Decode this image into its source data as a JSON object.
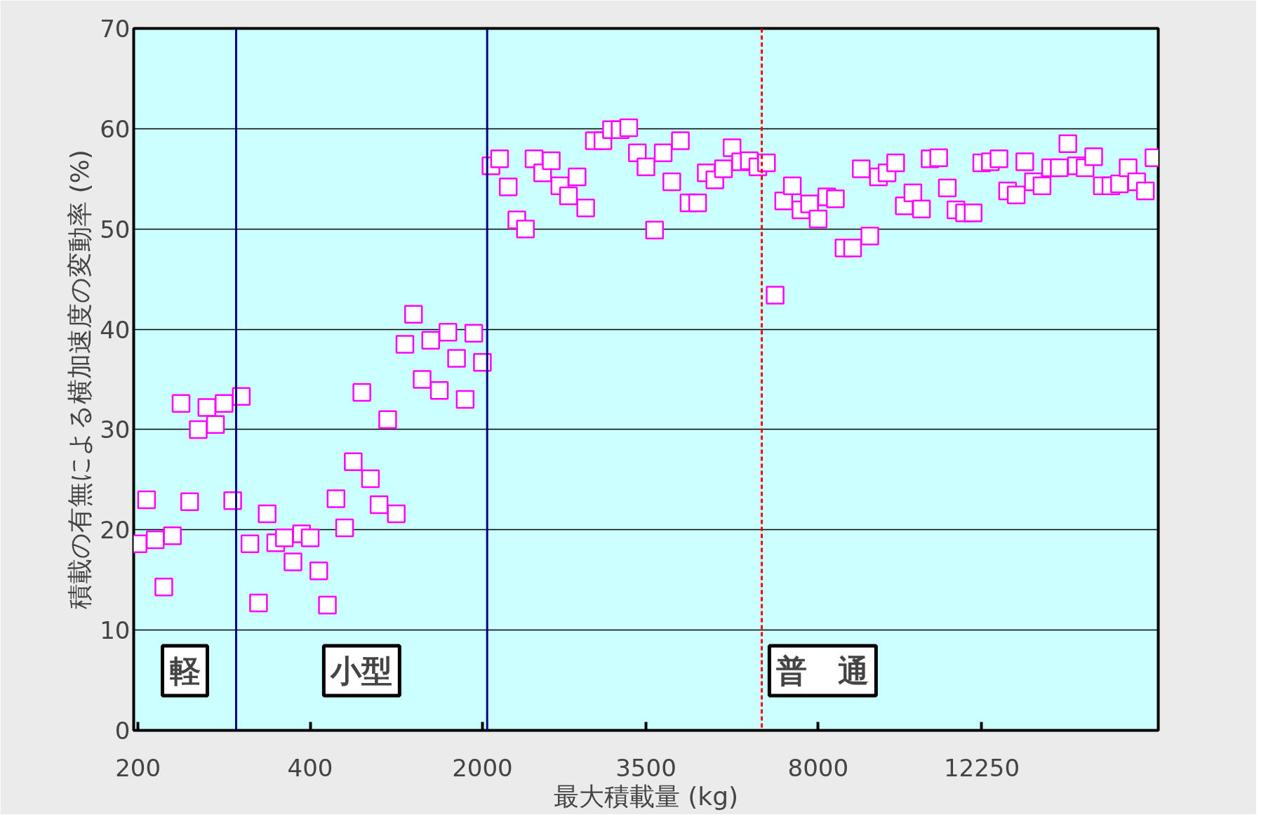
{
  "chart_data": {
    "type": "scatter",
    "xlabel": "最大積載量 (kg)",
    "ylabel": "積載の有無による横加速度の変動率 (%)",
    "annotations": [
      "軽",
      "小型",
      "普　通"
    ],
    "categories": [
      "200",
      null,
      null,
      null,
      null,
      null,
      null,
      null,
      null,
      null,
      null,
      null,
      null,
      null,
      null,
      null,
      null,
      null,
      null,
      null,
      "400",
      null,
      null,
      null,
      null,
      null,
      null,
      null,
      null,
      null,
      null,
      null,
      null,
      null,
      null,
      null,
      null,
      null,
      null,
      null,
      "2000",
      null,
      null,
      null,
      null,
      null,
      null,
      null,
      null,
      null,
      null,
      null,
      null,
      null,
      null,
      null,
      null,
      null,
      null,
      "3500",
      null,
      null,
      null,
      null,
      null,
      null,
      null,
      null,
      null,
      null,
      null,
      null,
      null,
      null,
      null,
      null,
      null,
      null,
      null,
      "8000",
      null,
      null,
      null,
      null,
      null,
      null,
      null,
      null,
      null,
      null,
      null,
      null,
      null,
      null,
      null,
      null,
      null,
      null,
      "12250",
      null,
      null,
      null,
      null,
      null,
      null,
      null,
      null,
      null,
      null,
      null,
      null,
      null,
      null,
      null,
      null,
      null,
      null,
      null,
      null
    ],
    "series": [
      {
        "color": "#ff00ff",
        "values": [
          18.6,
          23.0,
          19.0,
          14.3,
          19.4,
          32.6,
          22.8,
          30.0,
          32.2,
          30.5,
          32.6,
          22.9,
          33.3,
          18.6,
          12.7,
          21.6,
          18.7,
          19.2,
          16.8,
          19.6,
          19.2,
          15.9,
          12.5,
          23.1,
          20.2,
          26.8,
          33.7,
          25.1,
          22.5,
          31.0,
          21.6,
          38.5,
          41.5,
          35.0,
          38.9,
          33.9,
          39.7,
          37.1,
          33.0,
          39.6,
          36.7,
          56.3,
          57.0,
          54.2,
          50.9,
          50.0,
          57.0,
          55.6,
          56.8,
          54.3,
          53.3,
          55.2,
          52.1,
          58.8,
          58.8,
          59.9,
          59.9,
          60.1,
          57.6,
          56.2,
          49.9,
          57.6,
          54.7,
          58.8,
          52.6,
          52.6,
          55.6,
          54.9,
          56.0,
          58.1,
          56.7,
          56.8,
          56.2,
          56.6,
          43.4,
          52.8,
          54.3,
          51.9,
          52.5,
          51.0,
          53.2,
          53.0,
          48.1,
          48.1,
          56.0,
          49.3,
          55.2,
          55.6,
          56.6,
          52.3,
          53.6,
          52.0,
          57.0,
          57.1,
          54.1,
          51.9,
          51.6,
          51.6,
          56.6,
          56.7,
          57.0,
          53.8,
          53.4,
          56.7,
          54.7,
          54.3,
          56.1,
          56.1,
          58.5,
          56.3,
          56.1,
          57.2,
          54.3,
          54.3,
          54.5,
          56.1,
          54.7,
          53.8,
          57.1
        ]
      }
    ],
    "ylim": [
      0,
      70
    ],
    "yticks": [
      0,
      10,
      20,
      30,
      40,
      50,
      60,
      70
    ],
    "grid": "y",
    "marker": "square"
  }
}
